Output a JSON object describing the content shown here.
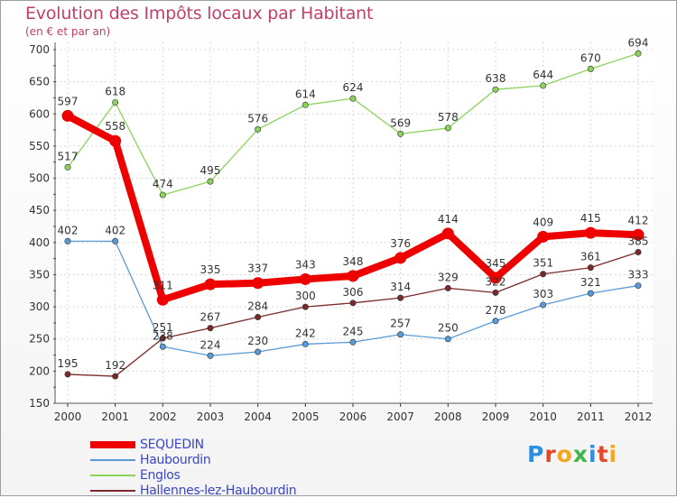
{
  "title": "Evolution des Impôts locaux par Habitant",
  "subtitle": "(en € et par an)",
  "logo": {
    "text": "Proxiti",
    "letter_colors": [
      "#2f8ee0",
      "#e8462b",
      "#f6a623",
      "#3fb54a",
      "#2f8ee0",
      "#e8462b",
      "#f6a623"
    ]
  },
  "chart_data": {
    "type": "line",
    "title": "Evolution des Impôts locaux par Habitant",
    "subtitle": "(en € et par an)",
    "xlabel": "",
    "ylabel": "",
    "ylim": [
      150,
      700
    ],
    "yticks": [
      150,
      200,
      250,
      300,
      350,
      400,
      450,
      500,
      550,
      600,
      650,
      700
    ],
    "grid": true,
    "legend_position": "bottom-left",
    "categories": [
      "2000",
      "2001",
      "2002",
      "2003",
      "2004",
      "2005",
      "2006",
      "2007",
      "2008",
      "2009",
      "2010",
      "2011",
      "2012"
    ],
    "series": [
      {
        "name": "SEQUEDIN",
        "color": "#ee0000",
        "emphasis": true,
        "values": [
          597,
          558,
          311,
          335,
          337,
          343,
          348,
          376,
          414,
          345,
          409,
          415,
          412
        ]
      },
      {
        "name": "Haubourdin",
        "color": "#5b9bd5",
        "emphasis": false,
        "values": [
          402,
          402,
          238,
          224,
          230,
          242,
          245,
          257,
          250,
          278,
          303,
          321,
          333
        ]
      },
      {
        "name": "Englos",
        "color": "#8bd35b",
        "emphasis": false,
        "values": [
          517,
          618,
          474,
          495,
          576,
          614,
          624,
          569,
          578,
          638,
          644,
          670,
          694
        ]
      },
      {
        "name": "Hallennes-lez-Haubourdin",
        "color": "#7a2a2a",
        "emphasis": false,
        "values": [
          195,
          192,
          251,
          267,
          284,
          300,
          306,
          314,
          329,
          322,
          351,
          361,
          385
        ]
      }
    ]
  }
}
